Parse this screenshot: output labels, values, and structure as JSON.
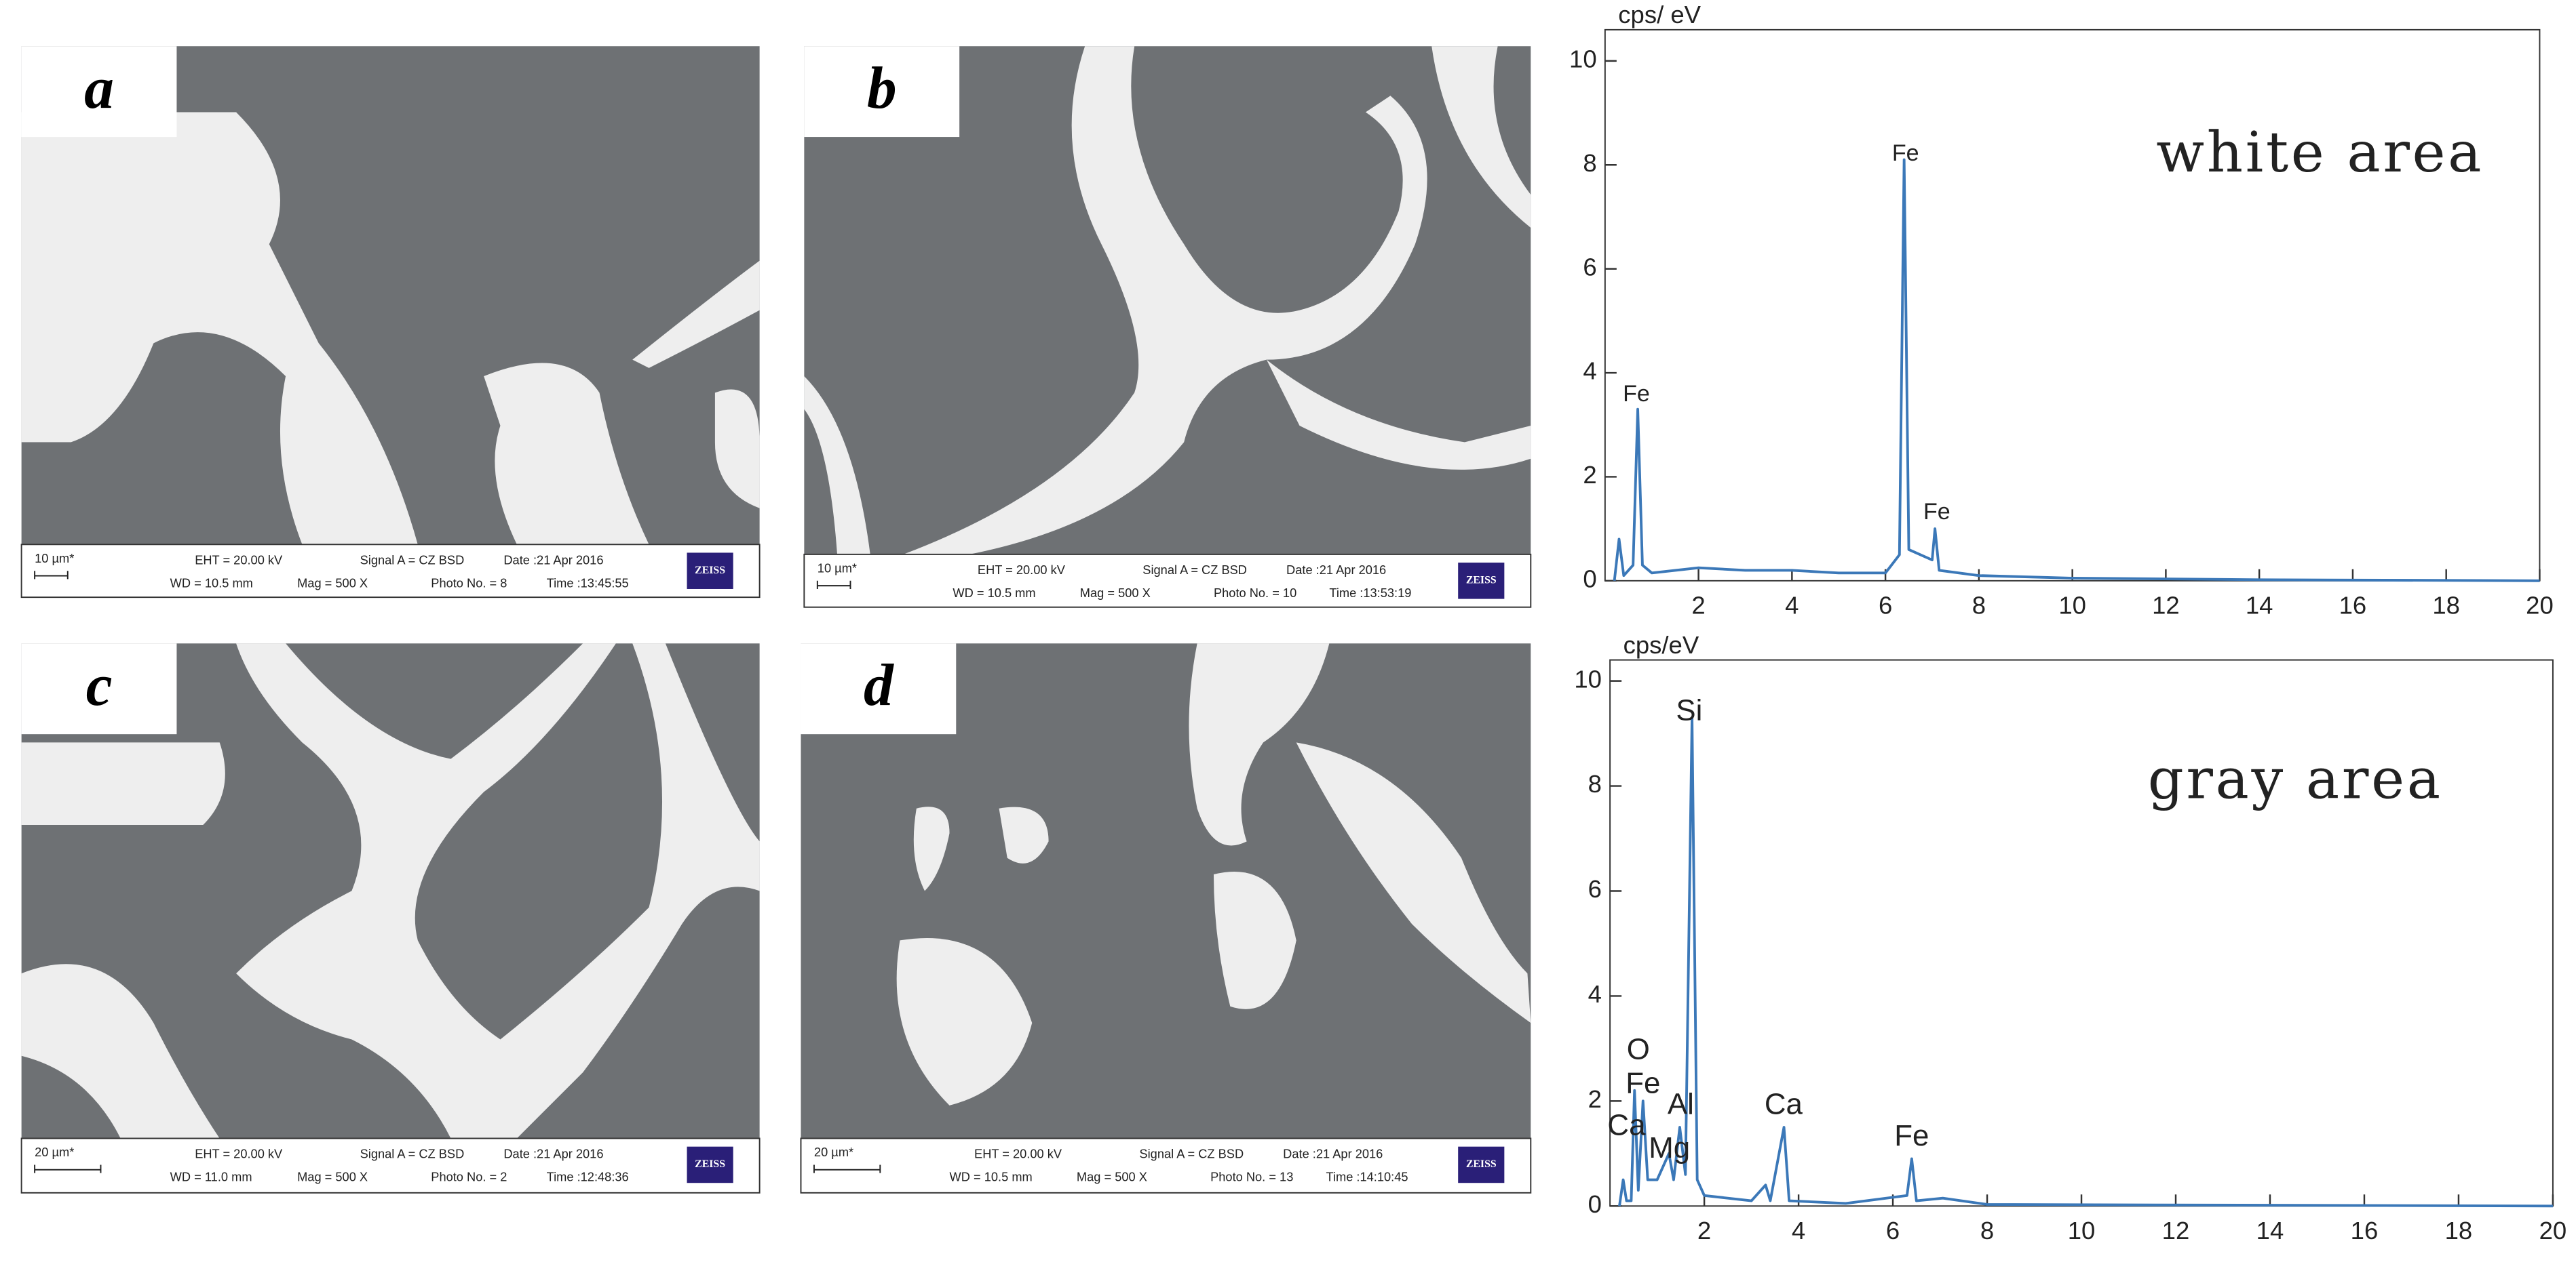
{
  "panels": [
    {
      "label": "a",
      "scale": "10 µm*",
      "eht": "EHT = 20.00 kV",
      "signal": "Signal A = CZ BSD",
      "date": "Date :21 Apr 2016",
      "wd": "WD = 10.5 mm",
      "mag": "Mag =   500 X",
      "photo": "Photo No. = 8",
      "time": "Time :13:45:55",
      "brand": "ZEISS"
    },
    {
      "label": "b",
      "scale": "10 µm*",
      "eht": "EHT = 20.00 kV",
      "signal": "Signal A = CZ BSD",
      "date": "Date :21 Apr 2016",
      "wd": "WD = 10.5 mm",
      "mag": "Mag =   500 X",
      "photo": "Photo No. = 10",
      "time": "Time :13:53:19",
      "brand": "ZEISS"
    },
    {
      "label": "c",
      "scale": "20 µm*",
      "eht": "EHT = 20.00 kV",
      "signal": "Signal A = CZ BSD",
      "date": "Date :21 Apr 2016",
      "wd": "WD = 11.0 mm",
      "mag": "Mag =   500 X",
      "photo": "Photo No. = 2",
      "time": "Time :12:48:36",
      "brand": "ZEISS"
    },
    {
      "label": "d",
      "scale": "20 µm*",
      "eht": "EHT = 20.00 kV",
      "signal": "Signal A = CZ BSD",
      "date": "Date :21 Apr 2016",
      "wd": "WD = 10.5 mm",
      "mag": "Mag =   500 X",
      "photo": "Photo No. = 13",
      "time": "Time :14:10:45",
      "brand": "ZEISS"
    }
  ],
  "chart_data": [
    {
      "type": "line",
      "title": "white area",
      "y_label": "cps/ eV",
      "color": "#3b78b8",
      "xlim": [
        0,
        20
      ],
      "ylim": [
        0,
        10.6
      ],
      "xticks": [
        2,
        4,
        6,
        8,
        10,
        12,
        14,
        16,
        18,
        20
      ],
      "yticks": [
        0,
        2,
        4,
        6,
        8,
        10
      ],
      "series": [
        {
          "name": "white area",
          "x": [
            0.2,
            0.3,
            0.4,
            0.6,
            0.7,
            0.8,
            1.0,
            2,
            3,
            4,
            5,
            6,
            6.3,
            6.4,
            6.5,
            7.0,
            7.06,
            7.15,
            8,
            10,
            14,
            20
          ],
          "values": [
            0,
            0.8,
            0.1,
            0.3,
            3.3,
            0.3,
            0.15,
            0.25,
            0.2,
            0.2,
            0.15,
            0.15,
            0.5,
            8.1,
            0.6,
            0.4,
            1.0,
            0.2,
            0.1,
            0.05,
            0.02,
            0
          ]
        }
      ],
      "annotations": [
        {
          "text": "Fe",
          "x": 0.67,
          "y": 3.57
        },
        {
          "text": "Fe",
          "x": 6.43,
          "y": 8.2
        },
        {
          "text": "Fe",
          "x": 7.1,
          "y": 1.3
        }
      ]
    },
    {
      "type": "line",
      "title": "gray area",
      "y_label": "cps/eV",
      "color": "#3b78b8",
      "xlim": [
        0,
        20
      ],
      "ylim": [
        0,
        10.4
      ],
      "xticks": [
        2,
        4,
        6,
        8,
        10,
        12,
        14,
        16,
        18,
        20
      ],
      "yticks": [
        0,
        2,
        4,
        6,
        8,
        10
      ],
      "series": [
        {
          "name": "gray area",
          "x": [
            0.2,
            0.28,
            0.35,
            0.45,
            0.52,
            0.6,
            0.7,
            0.8,
            1.0,
            1.25,
            1.35,
            1.48,
            1.6,
            1.74,
            1.85,
            2,
            3,
            3.3,
            3.4,
            3.69,
            3.8,
            5,
            6.3,
            6.4,
            6.5,
            7.06,
            8,
            20
          ],
          "values": [
            0,
            0.5,
            0.1,
            0.1,
            2.2,
            0.3,
            2.0,
            0.5,
            0.5,
            1.0,
            0.5,
            1.5,
            0.6,
            9.3,
            0.5,
            0.2,
            0.1,
            0.4,
            0.1,
            1.5,
            0.1,
            0.05,
            0.2,
            0.9,
            0.1,
            0.15,
            0.03,
            0
          ]
        }
      ],
      "annotations": [
        {
          "text": "Si",
          "x": 1.68,
          "y": 9.4
        },
        {
          "text": "O",
          "x": 0.6,
          "y": 2.95
        },
        {
          "text": "Fe",
          "x": 0.7,
          "y": 2.3
        },
        {
          "text": "Ca",
          "x": 0.35,
          "y": 1.5
        },
        {
          "text": "Mg",
          "x": 1.26,
          "y": 1.07
        },
        {
          "text": "Al",
          "x": 1.5,
          "y": 1.9
        },
        {
          "text": "Ca",
          "x": 3.68,
          "y": 1.9
        },
        {
          "text": "Fe",
          "x": 6.4,
          "y": 1.3
        }
      ]
    }
  ]
}
